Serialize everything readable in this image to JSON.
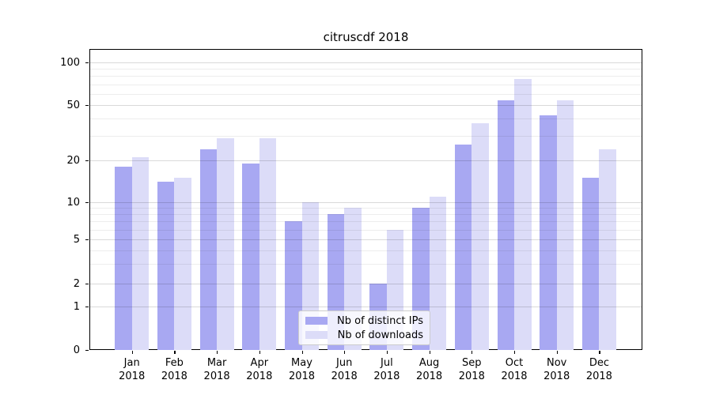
{
  "title": "citruscdf 2018",
  "chart_data": {
    "type": "bar",
    "title": "citruscdf 2018",
    "categories": [
      "Jan",
      "Feb",
      "Mar",
      "Apr",
      "May",
      "Jun",
      "Jul",
      "Aug",
      "Sep",
      "Oct",
      "Nov",
      "Dec"
    ],
    "category_year": "2018",
    "series": [
      {
        "name": "Nb of distinct IPs",
        "color": "#a8a8f2",
        "values": [
          18,
          14,
          24,
          19,
          7,
          8,
          2,
          9,
          26,
          54,
          42,
          15
        ]
      },
      {
        "name": "Nb of downloads",
        "color": "#dcdcf8",
        "values": [
          21,
          15,
          29,
          29,
          10,
          9,
          6,
          11,
          37,
          76,
          54,
          24
        ]
      }
    ],
    "y_axis": {
      "scale": "symlog",
      "ticks": [
        0,
        1,
        2,
        5,
        10,
        20,
        50,
        100
      ],
      "minor_gridlines": [
        3,
        4,
        6,
        7,
        8,
        9,
        30,
        40,
        60,
        70,
        80,
        90
      ],
      "ylim": [
        0,
        110
      ]
    },
    "grid": "horizontal",
    "legend_position": "bottom-center"
  }
}
